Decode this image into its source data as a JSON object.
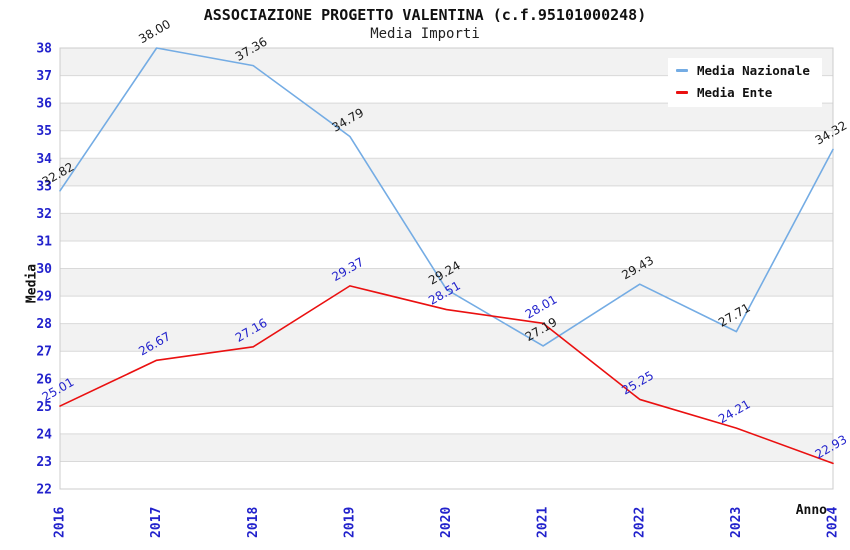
{
  "title": "ASSOCIAZIONE PROGETTO VALENTINA (c.f.95101000248)",
  "subtitle": "Media Importi",
  "legend": {
    "items": [
      {
        "label": "Media Nazionale",
        "color": "#74ace4"
      },
      {
        "label": "Media Ente",
        "color": "#ea1010"
      }
    ]
  },
  "chart_data": {
    "type": "line",
    "title": "ASSOCIAZIONE PROGETTO VALENTINA (c.f.95101000248)",
    "subtitle": "Media Importi",
    "xlabel": "Anno",
    "ylabel": "Media",
    "x": [
      "2016",
      "2017",
      "2018",
      "2019",
      "2020",
      "2021",
      "2022",
      "2023",
      "2024"
    ],
    "series": [
      {
        "name": "Media Nazionale",
        "color": "#74ace4",
        "label_color": "#1a1a1a",
        "values": [
          32.82,
          38.0,
          37.36,
          34.79,
          29.24,
          27.19,
          29.43,
          27.71,
          34.32
        ],
        "labels": [
          "32.82",
          "38.00",
          "37.36",
          "34.79",
          "29.24",
          "27.19",
          "29.43",
          "27.71",
          "34.32"
        ]
      },
      {
        "name": "Media Ente",
        "color": "#ea1010",
        "label_color": "#2222cc",
        "values": [
          25.01,
          26.67,
          27.16,
          29.37,
          28.51,
          28.01,
          25.25,
          24.21,
          22.93
        ],
        "labels": [
          "25.01",
          "26.67",
          "27.16",
          "29.37",
          "28.51",
          "28.01",
          "25.25",
          "24.21",
          "22.93"
        ]
      }
    ],
    "ylim": [
      22,
      38
    ],
    "ytick_step": 1,
    "grid": true,
    "legend_position": "top-right",
    "colors": {
      "tick_label": "#2222cc",
      "band_fill": "#f2f2f2",
      "gridline": "#d9d9d9",
      "plot_border": "#cccccc",
      "axis_title": "#111111"
    }
  }
}
